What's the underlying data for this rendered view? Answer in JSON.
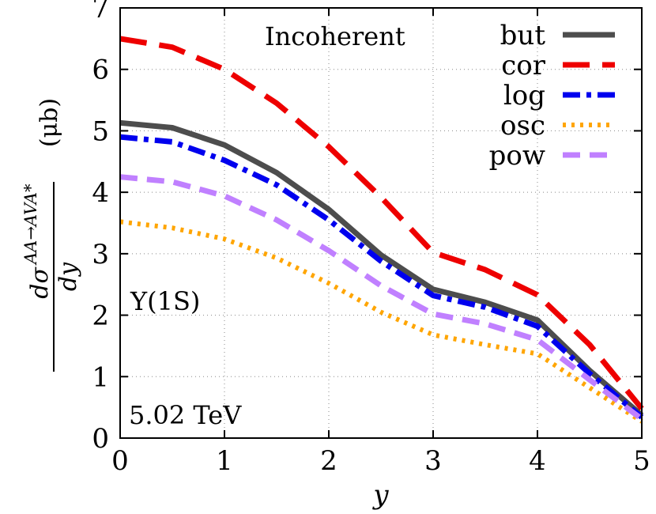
{
  "chart_data": {
    "type": "line",
    "title": "",
    "annotations": {
      "model": "Incoherent",
      "state": "Υ(1S)",
      "energy": "5.02 TeV"
    },
    "xlabel": "y",
    "ylabel": {
      "main": "dσ",
      "superscript": "AA→AVA*",
      "denominator": "dy",
      "unit": "(μb)"
    },
    "xlim": [
      0,
      5
    ],
    "ylim": [
      0,
      7
    ],
    "xticks": [
      "0",
      "1",
      "2",
      "3",
      "4",
      "5"
    ],
    "yticks": [
      "0",
      "1",
      "2",
      "3",
      "4",
      "5",
      "6",
      "7"
    ],
    "grid": true,
    "legend_position": "top-right",
    "series": [
      {
        "name": "but",
        "color": "#4d4d4d",
        "style": "solid",
        "x": [
          0,
          0.5,
          1,
          1.5,
          2,
          2.5,
          3,
          3.5,
          4,
          4.5,
          5
        ],
        "y": [
          5.13,
          5.05,
          4.77,
          4.32,
          3.72,
          2.98,
          2.42,
          2.21,
          1.92,
          1.1,
          0.37
        ]
      },
      {
        "name": "cor",
        "color": "#ee0000",
        "style": "long-dash",
        "x": [
          0,
          0.5,
          1,
          1.5,
          2,
          2.5,
          3,
          3.5,
          4,
          4.5,
          5
        ],
        "y": [
          6.5,
          6.36,
          6.0,
          5.45,
          4.74,
          3.92,
          3.02,
          2.74,
          2.33,
          1.52,
          0.48
        ]
      },
      {
        "name": "log",
        "color": "#0000ee",
        "style": "dash-dot",
        "x": [
          0,
          0.5,
          1,
          1.5,
          2,
          2.5,
          3,
          3.5,
          4,
          4.5,
          5
        ],
        "y": [
          4.9,
          4.82,
          4.52,
          4.12,
          3.55,
          2.88,
          2.32,
          2.13,
          1.82,
          1.05,
          0.34
        ]
      },
      {
        "name": "osc",
        "color": "#ffa500",
        "style": "dotted",
        "x": [
          0,
          0.5,
          1,
          1.5,
          2,
          2.5,
          3,
          3.5,
          4,
          4.5,
          5
        ],
        "y": [
          3.52,
          3.42,
          3.24,
          2.93,
          2.52,
          2.05,
          1.68,
          1.52,
          1.37,
          0.82,
          0.27
        ]
      },
      {
        "name": "pow",
        "color": "#c080ff",
        "style": "dashed",
        "x": [
          0,
          0.5,
          1,
          1.5,
          2,
          2.5,
          3,
          3.5,
          4,
          4.5,
          5
        ],
        "y": [
          4.25,
          4.17,
          3.94,
          3.55,
          3.05,
          2.48,
          2.02,
          1.86,
          1.6,
          0.95,
          0.31
        ]
      }
    ]
  }
}
